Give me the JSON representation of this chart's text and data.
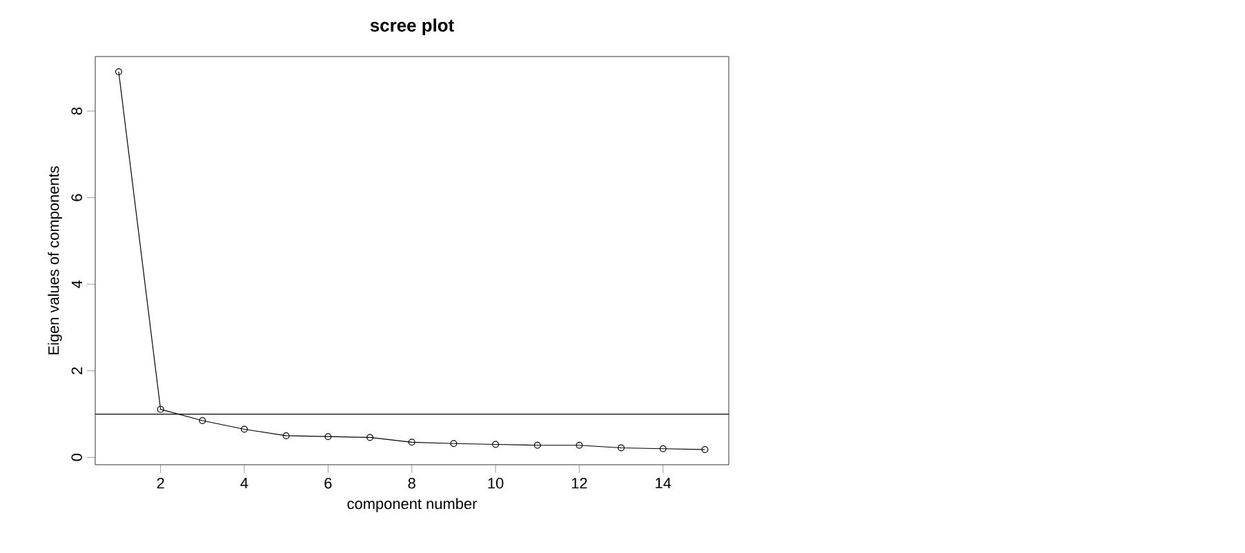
{
  "chart_data": {
    "type": "line",
    "title": "scree plot",
    "xlabel": "component number",
    "ylabel": "Eigen values of components",
    "x": [
      1,
      2,
      3,
      4,
      5,
      6,
      7,
      8,
      9,
      10,
      11,
      12,
      13,
      14,
      15
    ],
    "series": [
      {
        "color": "#000000",
        "values": [
          8.91,
          1.11,
          0.85,
          0.65,
          0.5,
          0.48,
          0.46,
          0.35,
          0.32,
          0.3,
          0.28,
          0.28,
          0.22,
          0.2,
          0.18
        ]
      }
    ],
    "xlim": [
      0.44,
      15.57
    ],
    "ylim": [
      -0.17,
      9.26
    ],
    "xticks": [
      2,
      4,
      6,
      8,
      10,
      12,
      14
    ],
    "yticks": [
      0,
      2,
      4,
      6,
      8
    ],
    "ref_lines": [
      {
        "axis": "y",
        "value": 1,
        "color": "#000000"
      }
    ],
    "marker": "circle",
    "line_style": "solid"
  }
}
